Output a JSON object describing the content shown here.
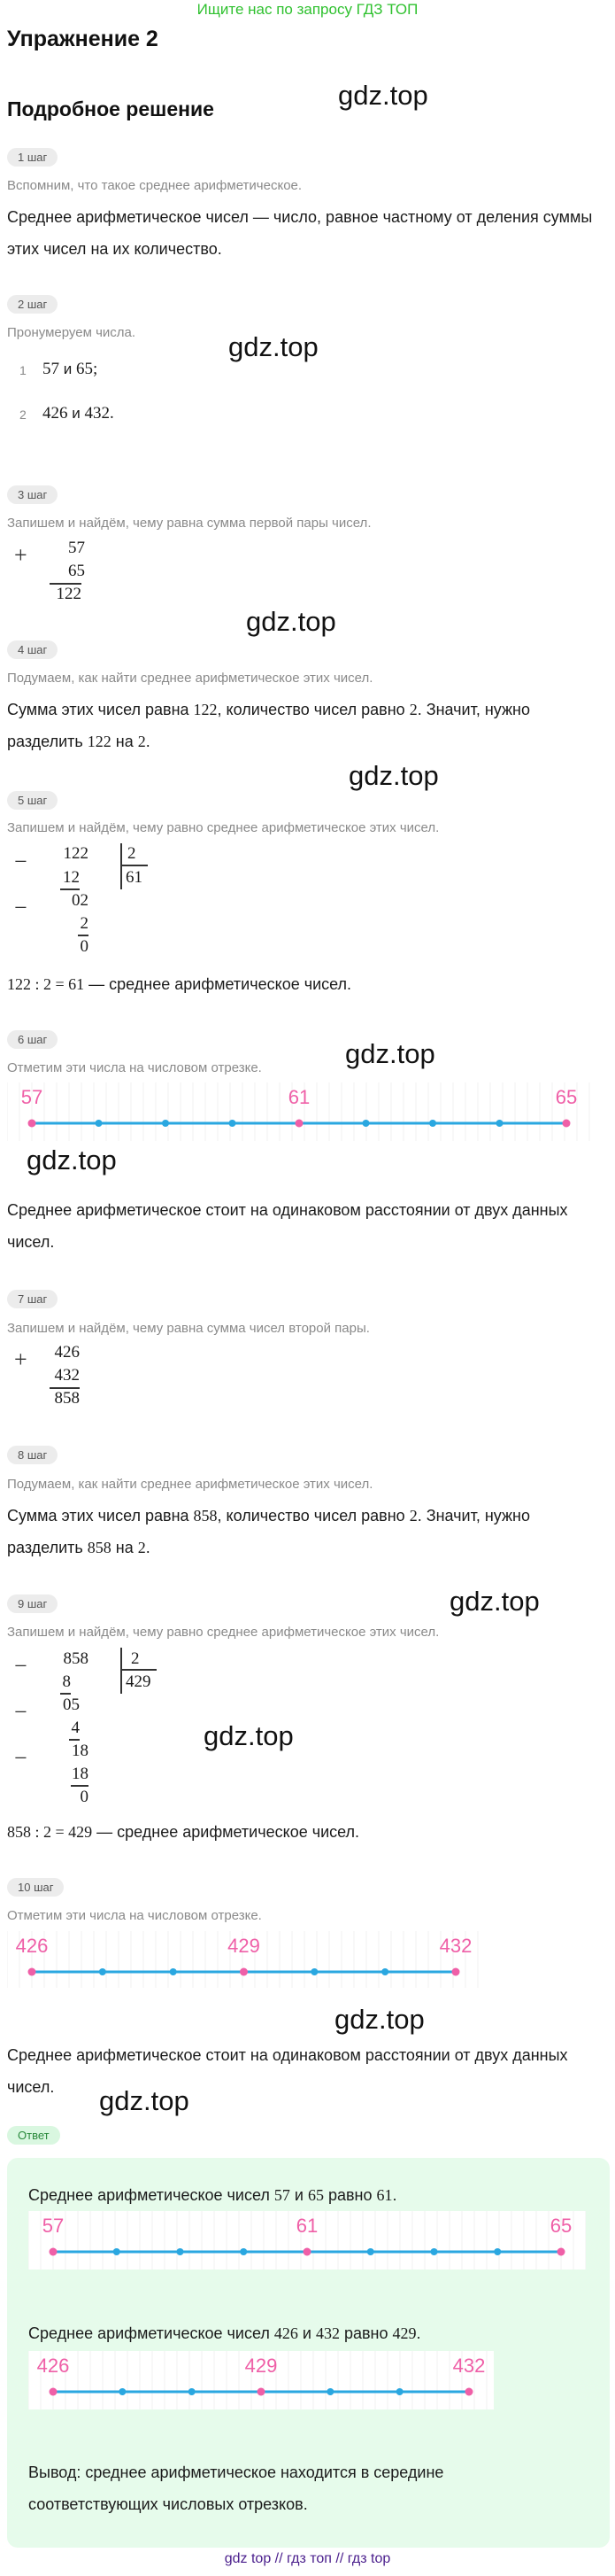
{
  "top_link": "Ищите нас по запросу ГДЗ ТОП",
  "title": "Упражнение 2",
  "subtitle": "Подробное решение",
  "watermark": "gdz.top",
  "steps": {
    "s1": {
      "badge": "1 шаг",
      "hint": "Вспомним, что такое среднее арифметическое.",
      "text1": "Среднее арифметическое чисел — число, равное частному от деления суммы",
      "text2": "этих чисел на их количество."
    },
    "s2": {
      "badge": "2 шаг",
      "hint": "Пронумеруем числа.",
      "items": [
        {
          "n": "1",
          "a": "57",
          "and": "и",
          "b": "65;"
        },
        {
          "n": "2",
          "a": "426",
          "and": "и",
          "b": "432."
        }
      ]
    },
    "s3": {
      "badge": "3 шаг",
      "hint": "Запишем и найдём, чему равна сумма первой пары чисел.",
      "op": "+",
      "a": "57",
      "b": "65",
      "sum": "122"
    },
    "s4": {
      "badge": "4 шаг",
      "hint": "Подумаем, как найти среднее арифметическое этих чисел.",
      "l1a": "Сумма этих чисел равна ",
      "l1n": "122",
      "l1b": ", количество чисел равно ",
      "l1m": "2",
      "l1c": ". Значит, нужно",
      "l2a": "разделить ",
      "l2n": "122",
      "l2b": " на ",
      "l2m": "2",
      "l2c": "."
    },
    "s5": {
      "badge": "5 шаг",
      "hint": "Запишем и найдём, чему равно среднее арифметическое этих чисел.",
      "minus": "−",
      "dividend": "122",
      "divisor": "2",
      "quotient": "61",
      "r1": "12",
      "r2": "02",
      "r3": "2",
      "r4": "0",
      "result_expr": "122 : 2 = 61",
      "result_text": " — среднее арифметическое чисел."
    },
    "s6": {
      "badge": "6 шаг",
      "hint": "Отметим эти числа на числовом отрезке.",
      "after1": "Среднее арифметическое стоит на одинаковом расстоянии от двух данных",
      "after2": "чисел."
    },
    "s7": {
      "badge": "7 шаг",
      "hint": "Запишем и найдём, чему равна сумма чисел второй пары.",
      "op": "+",
      "a": "426",
      "b": "432",
      "sum": "858"
    },
    "s8": {
      "badge": "8 шаг",
      "hint": "Подумаем, как найти среднее арифметическое этих чисел.",
      "l1a": "Сумма этих чисел равна ",
      "l1n": "858",
      "l1b": ", количество чисел равно ",
      "l1m": "2",
      "l1c": ". Значит, нужно",
      "l2a": "разделить ",
      "l2n": "858",
      "l2b": " на ",
      "l2m": "2",
      "l2c": "."
    },
    "s9": {
      "badge": "9 шаг",
      "hint": "Запишем и найдём, чему равно среднее арифметическое этих чисел.",
      "minus": "−",
      "dividend": "858",
      "divisor": "2",
      "quotient": "429",
      "r1": "8",
      "r2": "05",
      "r3": "4",
      "r4": "18",
      "r5": "18",
      "r6": "0",
      "result_expr": "858 : 2 = 429",
      "result_text": " — среднее арифметическое чисел."
    },
    "s10": {
      "badge": "10 шаг",
      "hint": "Отметим эти числа на числовом отрезке.",
      "after1": "Среднее арифметическое стоит на одинаковом расстоянии от двух данных",
      "after2": "чисел."
    }
  },
  "number_lines": {
    "first": {
      "left": "57",
      "mid": "61",
      "right": "65",
      "ticks": 9
    },
    "second": {
      "left": "426",
      "mid": "429",
      "right": "432",
      "ticks": 7
    }
  },
  "answer": {
    "badge": "Ответ",
    "line1a": "Среднее арифметическое чисел ",
    "line1n1": "57",
    "line1b": " и ",
    "line1n2": "65",
    "line1c": " равно ",
    "line1n3": "61",
    "line1d": ".",
    "line2a": "Среднее арифметическое чисел ",
    "line2n1": "426",
    "line2b": " и ",
    "line2n2": "432",
    "line2c": " равно ",
    "line2n3": "429",
    "line2d": ".",
    "concl1": "Вывод: среднее арифметическое находится в середине",
    "concl2": "соответствующих числовых отрезков."
  },
  "footer": {
    "l1": "gdz top",
    "sep1": "//",
    "l2": "гдз топ",
    "sep2": "//",
    "l3": "гдз top"
  },
  "colors": {
    "accent_line": "#2aa7e0",
    "point": "#ef5fa7",
    "label": "#ef5fa7",
    "link": "#2fc12f",
    "answer_bg": "#e6fbeb"
  }
}
